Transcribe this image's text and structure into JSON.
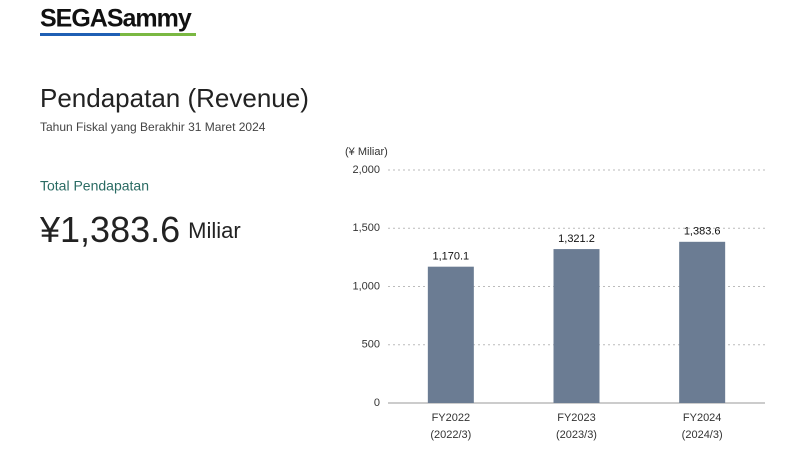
{
  "header": {
    "logo": "SEGASammy",
    "title": "Pendapatan (Revenue)",
    "subtitle": "Tahun Fiskal yang Berakhir 31 Maret 2024"
  },
  "summary": {
    "label": "Total Pendapatan",
    "value": "¥1,383.6",
    "unit": "Miliar"
  },
  "chart_data": {
    "type": "bar",
    "y_label": "(¥ Miliar)",
    "categories": [
      "FY2022",
      "FY2023",
      "FY2024"
    ],
    "category_sublabels": [
      "(2022/3)",
      "(2023/3)",
      "(2024/3)"
    ],
    "values": [
      1170.1,
      1321.2,
      1383.6
    ],
    "value_labels": [
      "1,170.1",
      "1,321.2",
      "1,383.6"
    ],
    "color": "#6b7c93",
    "ylim": [
      0,
      2000
    ],
    "yticks": [
      0,
      500,
      {
        "value": 1000,
        "label": "1,000"
      },
      {
        "value": 1500,
        "label": "1,500"
      },
      {
        "value": 2000,
        "label": "2,000"
      }
    ],
    "grid": true
  }
}
